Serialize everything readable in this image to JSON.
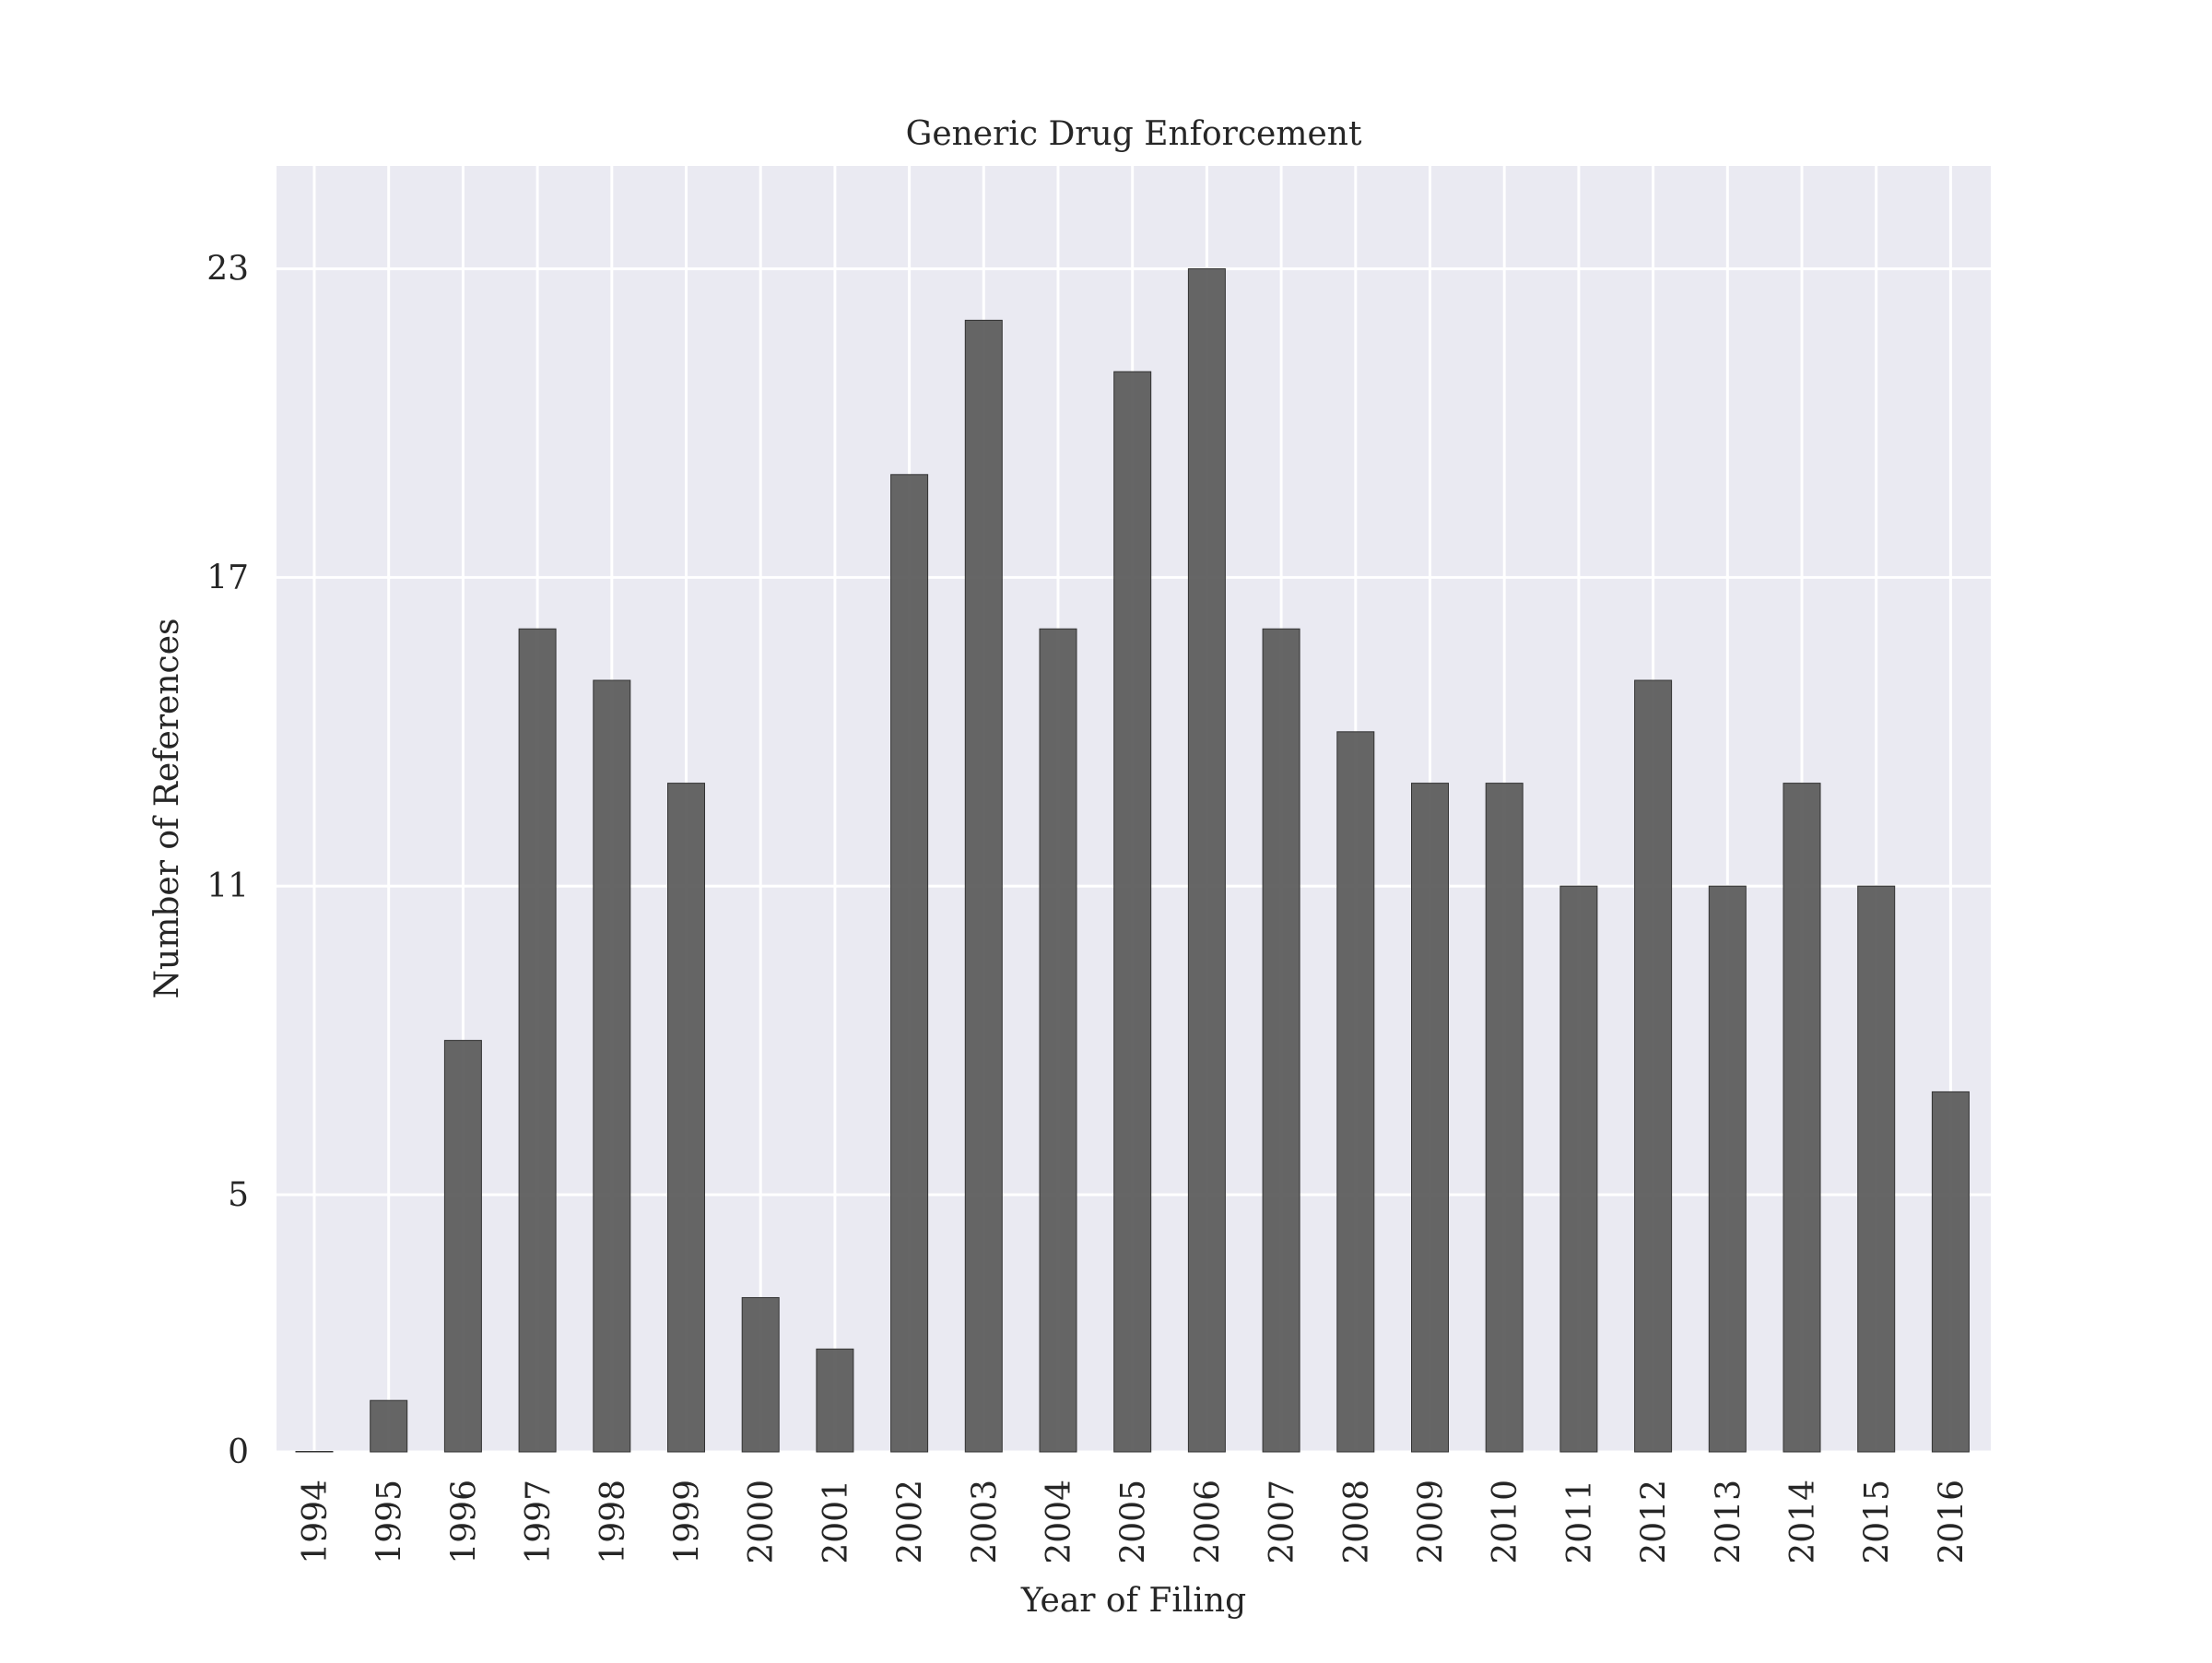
{
  "chart_data": {
    "type": "bar",
    "title": "Generic Drug Enforcement",
    "xlabel": "Year of Filing",
    "ylabel": "Number of References",
    "categories": [
      "1994",
      "1995",
      "1996",
      "1997",
      "1998",
      "1999",
      "2000",
      "2001",
      "2002",
      "2003",
      "2004",
      "2005",
      "2006",
      "2007",
      "2008",
      "2009",
      "2010",
      "2011",
      "2012",
      "2013",
      "2014",
      "2015",
      "2016"
    ],
    "values": [
      0,
      1,
      8,
      16,
      15,
      13,
      3,
      2,
      19,
      22,
      16,
      21,
      23,
      16,
      14,
      13,
      13,
      11,
      15,
      11,
      13,
      11,
      7
    ],
    "yticks": [
      0,
      5,
      11,
      17,
      23
    ],
    "ylim": [
      0,
      25
    ],
    "grid": true,
    "colors": {
      "bar": "#595959",
      "bar_edge": "#333333",
      "plot_background": "#eaeaf2",
      "grid": "#ffffff"
    }
  }
}
